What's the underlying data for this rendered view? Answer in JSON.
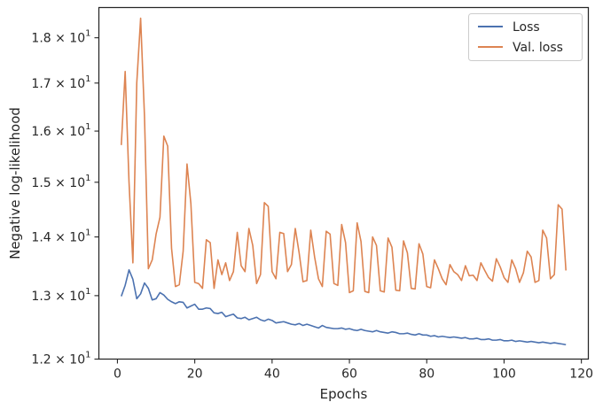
{
  "chart_data": {
    "type": "line",
    "xlabel": "Epochs",
    "ylabel": "Negative log-likelihood",
    "xlim": [
      -4.8,
      121.8
    ],
    "ylim": [
      12.0,
      18.7
    ],
    "yscale": "log",
    "x_ticks": [
      0,
      20,
      40,
      60,
      80,
      100,
      120
    ],
    "x_tick_labels": [
      "0",
      "20",
      "40",
      "60",
      "80",
      "100",
      "120"
    ],
    "y_ticks": [
      12,
      13,
      14,
      15,
      16,
      17,
      18
    ],
    "y_tick_labels": [
      {
        "base": "1.2",
        "mant": "10",
        "exp": "1"
      },
      {
        "base": "1.3",
        "mant": "10",
        "exp": "1"
      },
      {
        "base": "1.4",
        "mant": "10",
        "exp": "1"
      },
      {
        "base": "1.5",
        "mant": "10",
        "exp": "1"
      },
      {
        "base": "1.6",
        "mant": "10",
        "exp": "1"
      },
      {
        "base": "1.7",
        "mant": "10",
        "exp": "1"
      },
      {
        "base": "1.8",
        "mant": "10",
        "exp": "1"
      }
    ],
    "legend_position": "top-right",
    "grid": false,
    "x": [
      1,
      2,
      3,
      4,
      5,
      6,
      7,
      8,
      9,
      10,
      11,
      12,
      13,
      14,
      15,
      16,
      17,
      18,
      19,
      20,
      21,
      22,
      23,
      24,
      25,
      26,
      27,
      28,
      29,
      30,
      31,
      32,
      33,
      34,
      35,
      36,
      37,
      38,
      39,
      40,
      41,
      42,
      43,
      44,
      45,
      46,
      47,
      48,
      49,
      50,
      51,
      52,
      53,
      54,
      55,
      56,
      57,
      58,
      59,
      60,
      61,
      62,
      63,
      64,
      65,
      66,
      67,
      68,
      69,
      70,
      71,
      72,
      73,
      74,
      75,
      76,
      77,
      78,
      79,
      80,
      81,
      82,
      83,
      84,
      85,
      86,
      87,
      88,
      89,
      90,
      91,
      92,
      93,
      94,
      95,
      96,
      97,
      98,
      99,
      100,
      101,
      102,
      103,
      104,
      105,
      106,
      107,
      108,
      109,
      110,
      111,
      112,
      113,
      114,
      115,
      116
    ],
    "series": [
      {
        "name": "Loss",
        "color": "#4c72b0",
        "values": [
          12.99,
          13.17,
          13.43,
          13.27,
          12.95,
          13.03,
          13.21,
          13.12,
          12.93,
          12.95,
          13.05,
          13.01,
          12.94,
          12.9,
          12.87,
          12.9,
          12.89,
          12.8,
          12.83,
          12.86,
          12.78,
          12.78,
          12.8,
          12.79,
          12.72,
          12.71,
          12.73,
          12.66,
          12.68,
          12.7,
          12.64,
          12.63,
          12.65,
          12.61,
          12.63,
          12.65,
          12.61,
          12.59,
          12.62,
          12.6,
          12.56,
          12.57,
          12.58,
          12.56,
          12.54,
          12.53,
          12.55,
          12.52,
          12.54,
          12.52,
          12.5,
          12.48,
          12.52,
          12.49,
          12.48,
          12.47,
          12.47,
          12.48,
          12.46,
          12.47,
          12.45,
          12.44,
          12.46,
          12.44,
          12.43,
          12.42,
          12.44,
          12.42,
          12.41,
          12.4,
          12.42,
          12.41,
          12.39,
          12.39,
          12.4,
          12.38,
          12.37,
          12.39,
          12.37,
          12.37,
          12.35,
          12.36,
          12.34,
          12.35,
          12.34,
          12.33,
          12.34,
          12.33,
          12.32,
          12.33,
          12.31,
          12.31,
          12.32,
          12.3,
          12.3,
          12.31,
          12.29,
          12.29,
          12.3,
          12.28,
          12.28,
          12.29,
          12.27,
          12.28,
          12.27,
          12.26,
          12.27,
          12.26,
          12.25,
          12.26,
          12.25,
          12.24,
          12.25,
          12.24,
          12.23,
          12.22
        ]
      },
      {
        "name": "Val. loss",
        "color": "#dd8452",
        "values": [
          15.72,
          17.25,
          15.0,
          13.55,
          17.0,
          18.45,
          16.3,
          13.45,
          13.6,
          14.05,
          14.35,
          15.9,
          15.7,
          13.8,
          13.15,
          13.18,
          13.75,
          15.35,
          14.6,
          13.22,
          13.2,
          13.12,
          13.95,
          13.9,
          13.12,
          13.6,
          13.35,
          13.55,
          13.25,
          13.4,
          14.08,
          13.5,
          13.4,
          14.15,
          13.85,
          13.2,
          13.35,
          14.62,
          14.55,
          13.4,
          13.28,
          14.08,
          14.06,
          13.4,
          13.52,
          14.15,
          13.72,
          13.23,
          13.25,
          14.12,
          13.65,
          13.28,
          13.15,
          14.1,
          14.05,
          13.2,
          13.17,
          14.22,
          13.9,
          13.05,
          13.08,
          14.25,
          13.92,
          13.07,
          13.05,
          14.0,
          13.85,
          13.08,
          13.06,
          13.98,
          13.82,
          13.09,
          13.08,
          13.93,
          13.72,
          13.12,
          13.11,
          13.88,
          13.7,
          13.15,
          13.13,
          13.6,
          13.45,
          13.28,
          13.18,
          13.52,
          13.4,
          13.35,
          13.25,
          13.5,
          13.33,
          13.34,
          13.25,
          13.55,
          13.42,
          13.3,
          13.24,
          13.62,
          13.48,
          13.3,
          13.22,
          13.6,
          13.45,
          13.22,
          13.38,
          13.75,
          13.65,
          13.22,
          13.25,
          14.12,
          13.98,
          13.28,
          13.35,
          14.58,
          14.5,
          13.42
        ]
      }
    ]
  }
}
